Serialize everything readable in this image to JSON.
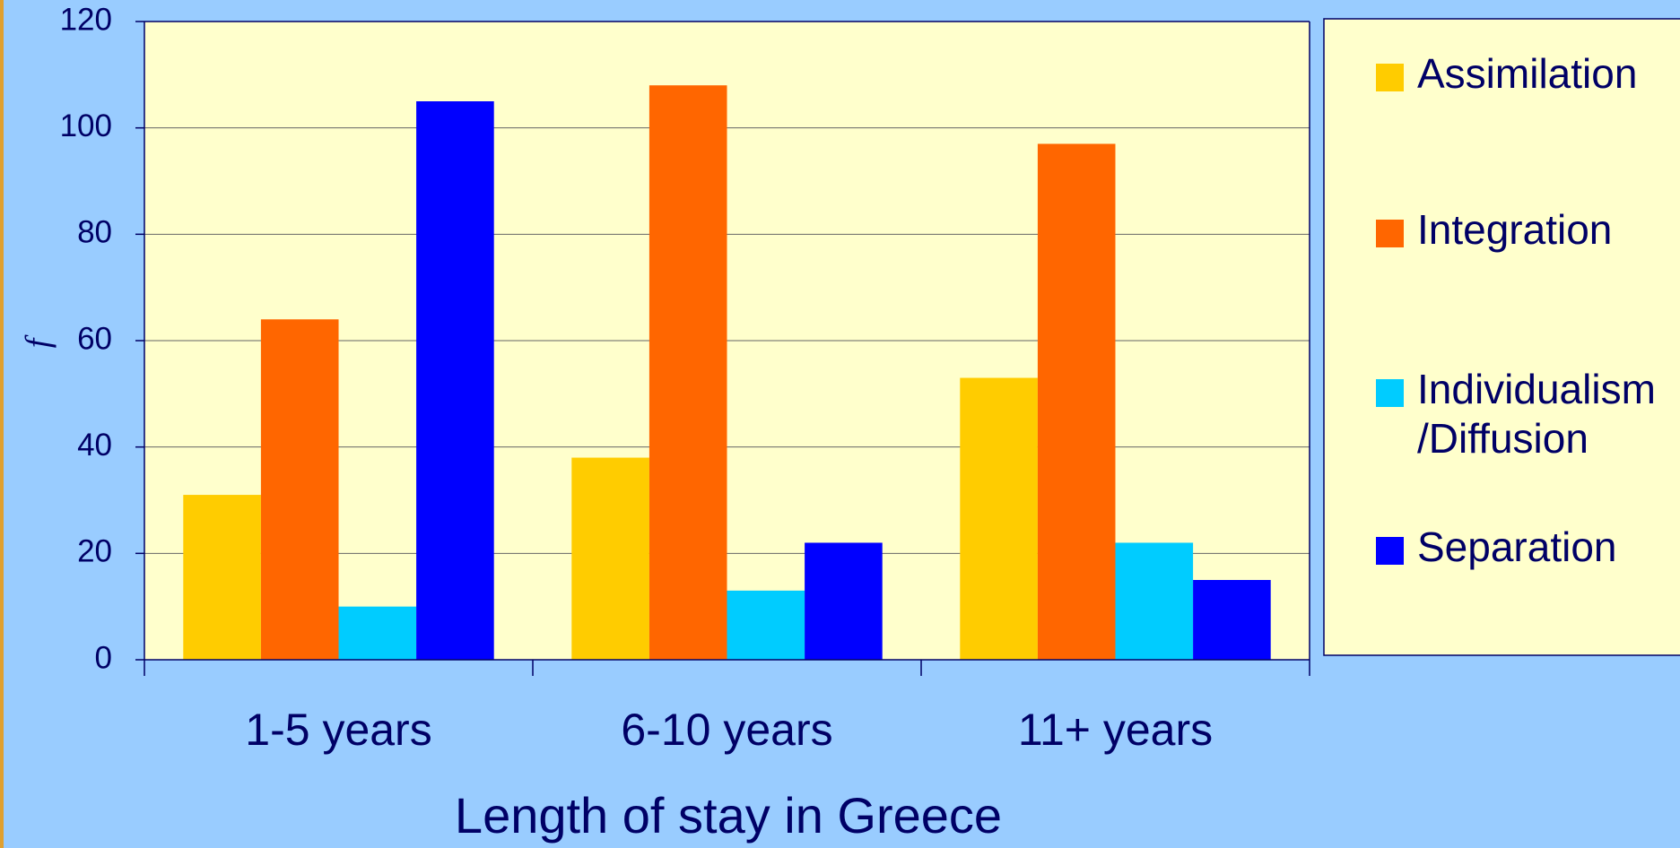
{
  "chart_data": {
    "type": "bar",
    "y_label": "f",
    "x_label": "Length of stay in Greece",
    "categories": [
      "1-5 years",
      "6-10 years",
      "11+ years"
    ],
    "series": [
      {
        "name": "Assimilation",
        "color": "#ffcc00",
        "values": [
          31,
          38,
          53
        ]
      },
      {
        "name": "Integration",
        "color": "#ff6600",
        "values": [
          64,
          108,
          97
        ]
      },
      {
        "name": "Individualism\n/Diffusion",
        "color": "#00ccff",
        "values": [
          10,
          13,
          22
        ]
      },
      {
        "name": "Separation",
        "color": "#0000ff",
        "values": [
          105,
          22,
          15
        ]
      }
    ],
    "ylim": [
      0,
      120
    ],
    "yticks": [
      0,
      20,
      40,
      60,
      80,
      100,
      120
    ],
    "grid": true,
    "legend": "right"
  }
}
